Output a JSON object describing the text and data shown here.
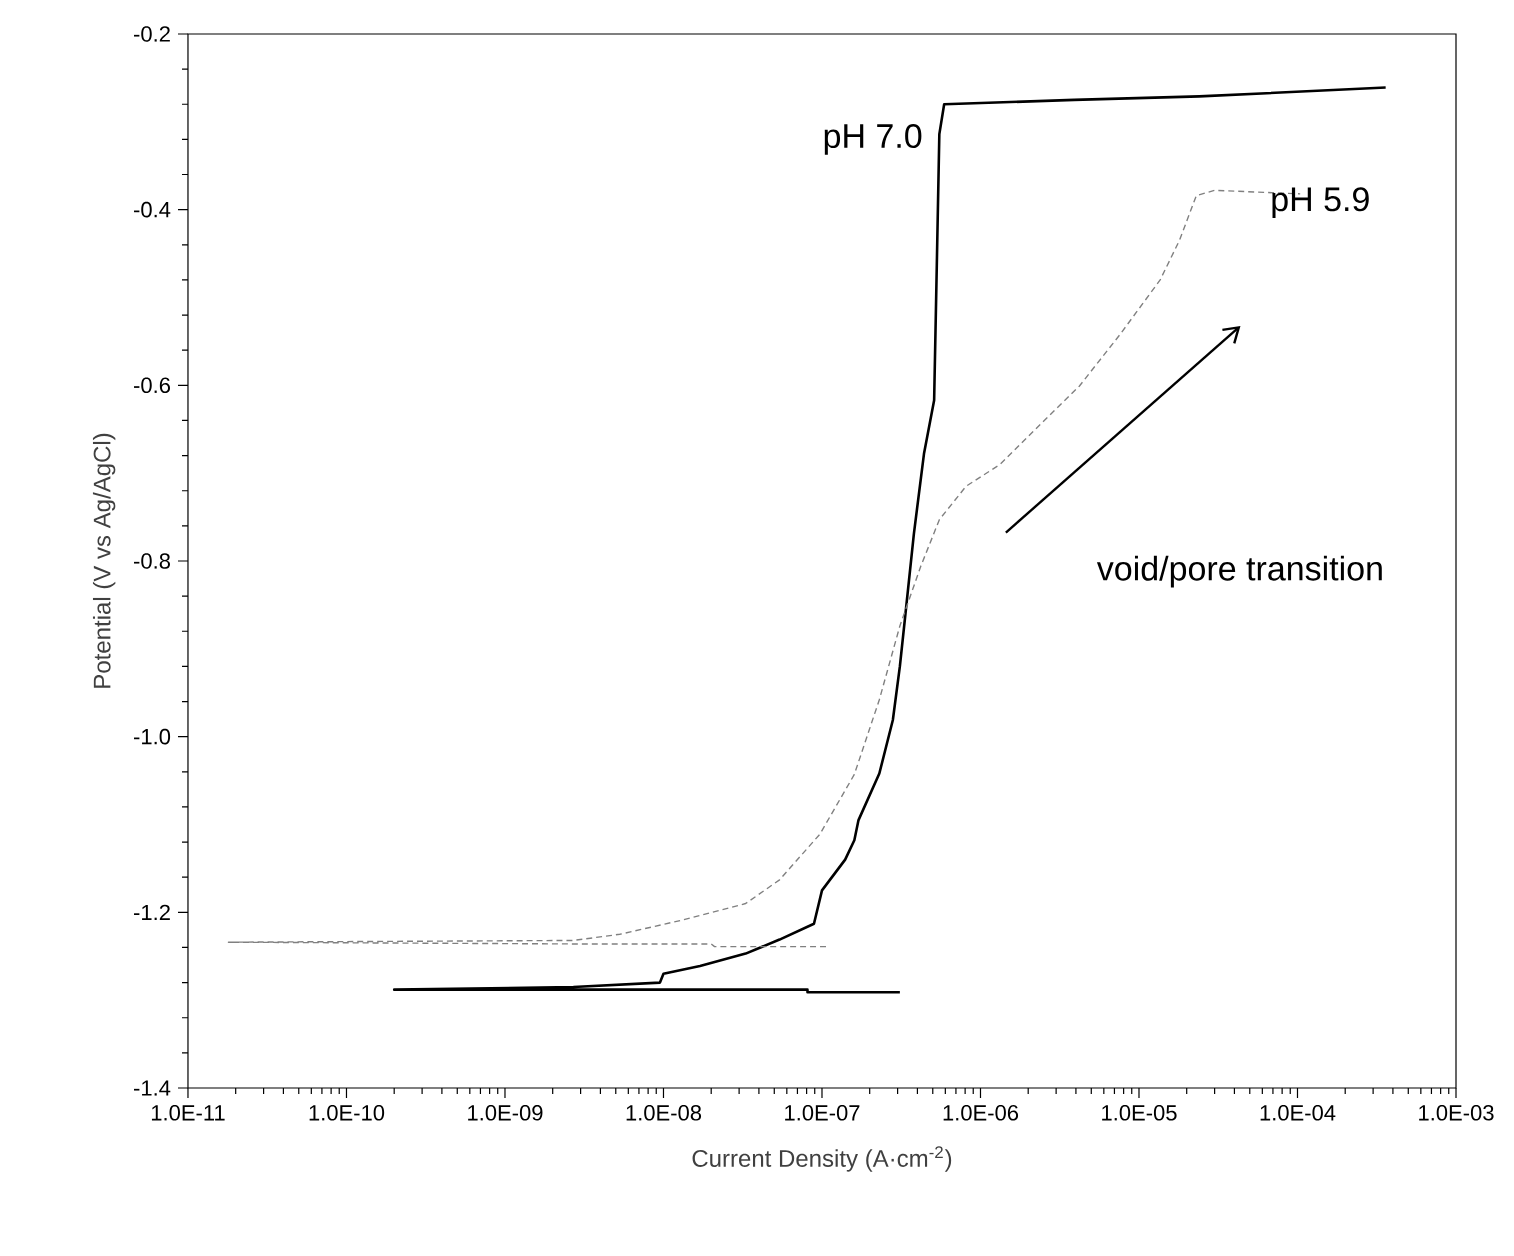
{
  "chart_data": {
    "type": "line",
    "xlabel": "Current Density (A·cm$^{-2}$)",
    "ylabel": "Potential (V vs Ag/AgCl)",
    "log": "x",
    "xlim": [
      1e-11,
      0.001
    ],
    "ylim": [
      -1.4,
      -0.2
    ],
    "xticks": [
      {
        "value": 1e-11,
        "label": "1.0E-11"
      },
      {
        "value": 1e-10,
        "label": "1.0E-10"
      },
      {
        "value": 1e-09,
        "label": "1.0E-09"
      },
      {
        "value": 1e-08,
        "label": "1.0E-08"
      },
      {
        "value": 1e-07,
        "label": "1.0E-07"
      },
      {
        "value": 1e-06,
        "label": "1.0E-06"
      },
      {
        "value": 1e-05,
        "label": "1.0E-05"
      },
      {
        "value": 0.0001,
        "label": "1.0E-04"
      },
      {
        "value": 0.001,
        "label": "1.0E-03"
      }
    ],
    "yticks": [
      {
        "value": -1.4,
        "label": "-1.4"
      },
      {
        "value": -1.2,
        "label": "-1.2"
      },
      {
        "value": -1.0,
        "label": "-1.0"
      },
      {
        "value": -0.8,
        "label": "-0.8"
      },
      {
        "value": -0.6,
        "label": "-0.6"
      },
      {
        "value": -0.4,
        "label": "-0.4"
      },
      {
        "value": -0.2,
        "label": "-0.2"
      }
    ],
    "grid": false,
    "legend": false,
    "marker": "none",
    "series": [
      {
        "name": "pH 7.0",
        "color": "#000000",
        "line_style": "solid",
        "x": [
          3.1e-07,
          8.1e-08,
          8.1e-08,
          2e-10,
          2.7e-09,
          9.5e-09,
          1e-08,
          1.7e-08,
          3.3e-08,
          5.4e-08,
          8.9e-08,
          1e-07,
          1.4e-07,
          1.6e-07,
          1.7e-07,
          2.3e-07,
          2.8e-07,
          3.1e-07,
          3.3e-07,
          3.8e-07,
          4.4e-07,
          5.1e-07,
          5.3e-07,
          5.5e-07,
          5.9e-07,
          3.9e-06,
          2.4e-05,
          0.00036
        ],
        "values": [
          -1.291,
          -1.291,
          -1.288,
          -1.288,
          -1.285,
          -1.28,
          -1.27,
          -1.261,
          -1.247,
          -1.231,
          -1.213,
          -1.175,
          -1.14,
          -1.118,
          -1.095,
          -1.042,
          -0.981,
          -0.92,
          -0.874,
          -0.769,
          -0.678,
          -0.617,
          -0.464,
          -0.314,
          -0.28,
          -0.275,
          -0.271,
          -0.261
        ]
      },
      {
        "name": "pH 5.9",
        "color": "#808080",
        "line_style": "dashed",
        "x": [
          1.06e-07,
          2.1e-08,
          2e-08,
          2.7e-09,
          1.8e-11,
          2.7e-09,
          5.3e-09,
          1.3e-08,
          3.3e-08,
          5.4e-08,
          9.7e-08,
          1.6e-07,
          2.3e-07,
          3.1e-07,
          4.2e-07,
          5.5e-07,
          8.1e-07,
          1.33e-06,
          2.4e-06,
          4.2e-06,
          7.6e-06,
          1.36e-05,
          1.8e-05,
          2.3e-05,
          3e-05,
          0.000104
        ],
        "values": [
          -1.239,
          -1.239,
          -1.236,
          -1.236,
          -1.234,
          -1.232,
          -1.225,
          -1.209,
          -1.19,
          -1.163,
          -1.111,
          -1.043,
          -0.958,
          -0.874,
          -0.806,
          -0.753,
          -0.715,
          -0.69,
          -0.644,
          -0.601,
          -0.542,
          -0.48,
          -0.435,
          -0.384,
          -0.378,
          -0.382
        ]
      }
    ],
    "annotations": [
      "void/pore transition"
    ]
  }
}
